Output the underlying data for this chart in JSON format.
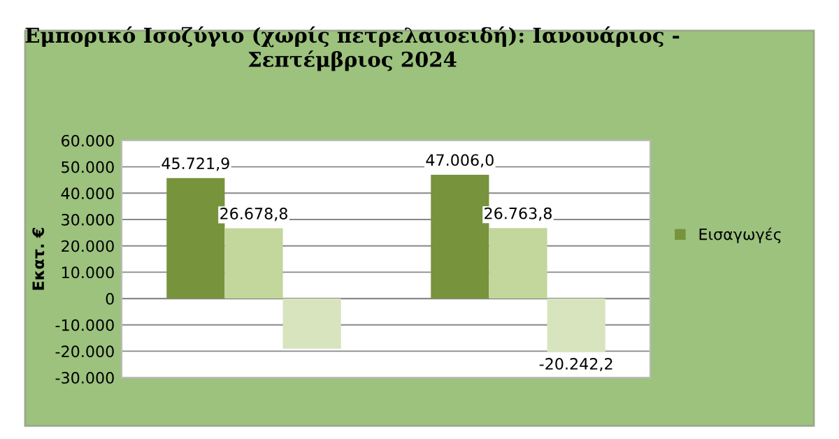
{
  "chart_data": {
    "type": "bar",
    "title": "Εμπορικό Ισοζύγιο (χωρίς πετρελαιοειδή): Ιανουάριος - Σεπτέμβριος 2024",
    "ylabel": "Εκατ. €",
    "categories": [
      null,
      null
    ],
    "series": [
      {
        "name": "Εισαγωγές",
        "color": "#77933c",
        "values": [
          45721.9,
          47006.0
        ],
        "value_labels": [
          "45.721,9",
          "47.006,0"
        ]
      },
      {
        "color": "#c3d69b",
        "values": [
          26678.8,
          26763.8
        ],
        "value_labels": [
          "26.678,8",
          "26.763,8"
        ]
      },
      {
        "color": "#d7e4bd",
        "values": [
          -19000,
          -20242.2
        ],
        "value_labels": [
          null,
          "-20.242,2"
        ]
      }
    ],
    "ylim": [
      -30000,
      60000
    ],
    "yticks": [
      {
        "value": -30000,
        "label": "-30.000"
      },
      {
        "value": -20000,
        "label": "-20.000"
      },
      {
        "value": -10000,
        "label": "-10.000"
      },
      0,
      {
        "value": 10000,
        "label": "10.000"
      },
      {
        "value": 20000,
        "label": "20.000"
      },
      {
        "value": 30000,
        "label": "30.000"
      },
      {
        "value": 40000,
        "label": "40.000"
      },
      {
        "value": 50000,
        "label": "50.000"
      },
      {
        "value": 60000,
        "label": "60.000"
      }
    ],
    "grid": "y",
    "legend": "right"
  }
}
